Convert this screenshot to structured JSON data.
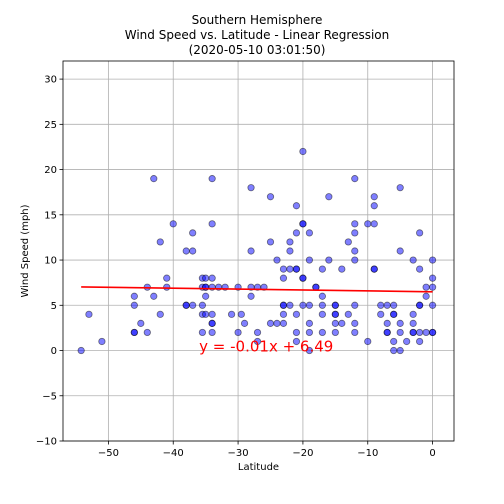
{
  "title_lines": [
    "Southern Hemisphere",
    "Wind Speed vs. Latitude - Linear Regression",
    "(2020-05-10 03:01:50)"
  ],
  "chart_data": {
    "type": "scatter",
    "title": "Southern Hemisphere\nWind Speed vs. Latitude - Linear Regression\n(2020-05-10 03:01:50)",
    "xlabel": "Latitude",
    "ylabel": "Wind Speed (mph)",
    "xlim": [
      -57,
      3.3
    ],
    "ylim": [
      -10,
      32
    ],
    "xticks": [
      -50,
      -40,
      -30,
      -20,
      -10,
      0
    ],
    "yticks": [
      -10,
      -5,
      0,
      5,
      10,
      15,
      20,
      25,
      30
    ],
    "grid": true,
    "marker_color": "#0000ff",
    "regression": {
      "slope": -0.01,
      "intercept": 6.49,
      "x_range": [
        -54.2,
        0
      ],
      "equation": "y = -0.01x + 6.49",
      "equation_color": "#ff0000",
      "line_color": "#ff0000"
    },
    "points": [
      [
        -54.2,
        0
      ],
      [
        -53,
        4
      ],
      [
        -51,
        1
      ],
      [
        -46,
        6
      ],
      [
        -46,
        5
      ],
      [
        -46,
        2
      ],
      [
        -46,
        2
      ],
      [
        -45,
        3
      ],
      [
        -44,
        7
      ],
      [
        -44,
        2
      ],
      [
        -43,
        19
      ],
      [
        -43,
        6
      ],
      [
        -42,
        12
      ],
      [
        -42,
        4
      ],
      [
        -41,
        8
      ],
      [
        -41,
        7
      ],
      [
        -40,
        14
      ],
      [
        -38,
        11
      ],
      [
        -38,
        5
      ],
      [
        -38,
        5
      ],
      [
        -37,
        13
      ],
      [
        -37,
        11
      ],
      [
        -37,
        5
      ],
      [
        -35.5,
        8
      ],
      [
        -35.5,
        7
      ],
      [
        -35.5,
        5
      ],
      [
        -35.5,
        4
      ],
      [
        -35.5,
        2
      ],
      [
        -35,
        8
      ],
      [
        -35,
        6
      ],
      [
        -35,
        7
      ],
      [
        -35,
        7
      ],
      [
        -35,
        4
      ],
      [
        -34,
        8
      ],
      [
        -34,
        7
      ],
      [
        -34,
        14
      ],
      [
        -34,
        19
      ],
      [
        -34,
        4
      ],
      [
        -34,
        3
      ],
      [
        -34,
        3
      ],
      [
        -34,
        2
      ],
      [
        -33,
        7
      ],
      [
        -32,
        7
      ],
      [
        -31,
        4
      ],
      [
        -30,
        2
      ],
      [
        -30,
        7
      ],
      [
        -29.5,
        4
      ],
      [
        -29,
        3
      ],
      [
        -28,
        18
      ],
      [
        -28,
        11
      ],
      [
        -28,
        7
      ],
      [
        -28,
        6
      ],
      [
        -27,
        7
      ],
      [
        -27,
        2
      ],
      [
        -27,
        1
      ],
      [
        -26,
        7
      ],
      [
        -25,
        17
      ],
      [
        -25,
        12
      ],
      [
        -25,
        3
      ],
      [
        -24,
        10
      ],
      [
        -24,
        3
      ],
      [
        -23,
        9
      ],
      [
        -23,
        8
      ],
      [
        -23,
        5
      ],
      [
        -23,
        5
      ],
      [
        -23,
        4
      ],
      [
        -23,
        3
      ],
      [
        -22,
        12
      ],
      [
        -22,
        11
      ],
      [
        -22,
        9
      ],
      [
        -22,
        5
      ],
      [
        -21,
        16
      ],
      [
        -21,
        13
      ],
      [
        -21,
        9
      ],
      [
        -21,
        9
      ],
      [
        -21,
        4
      ],
      [
        -21,
        2
      ],
      [
        -21,
        1
      ],
      [
        -20,
        22
      ],
      [
        -20,
        14
      ],
      [
        -20,
        14
      ],
      [
        -20,
        8
      ],
      [
        -20,
        8
      ],
      [
        -20,
        5
      ],
      [
        -19,
        13
      ],
      [
        -19,
        10
      ],
      [
        -19,
        5
      ],
      [
        -19,
        3
      ],
      [
        -19,
        2
      ],
      [
        -19,
        0
      ],
      [
        -18,
        7
      ],
      [
        -18,
        7
      ],
      [
        -17,
        9
      ],
      [
        -17,
        6
      ],
      [
        -17,
        5
      ],
      [
        -17,
        4
      ],
      [
        -17,
        2
      ],
      [
        -16,
        17
      ],
      [
        -16,
        10
      ],
      [
        -15,
        5
      ],
      [
        -15,
        5
      ],
      [
        -15,
        4
      ],
      [
        -15,
        4
      ],
      [
        -15,
        3
      ],
      [
        -15,
        2
      ],
      [
        -14,
        9
      ],
      [
        -14,
        3
      ],
      [
        -13,
        12
      ],
      [
        -13,
        4
      ],
      [
        -12,
        19
      ],
      [
        -12,
        14
      ],
      [
        -12,
        13
      ],
      [
        -12,
        11
      ],
      [
        -12,
        10
      ],
      [
        -12,
        5
      ],
      [
        -12,
        3
      ],
      [
        -12,
        2
      ],
      [
        -10,
        14
      ],
      [
        -10,
        1
      ],
      [
        -9,
        17
      ],
      [
        -9,
        16
      ],
      [
        -9,
        14
      ],
      [
        -9,
        9
      ],
      [
        -9,
        9
      ],
      [
        -8,
        5
      ],
      [
        -8,
        4
      ],
      [
        -7,
        5
      ],
      [
        -7,
        3
      ],
      [
        -7,
        2
      ],
      [
        -7,
        2
      ],
      [
        -6,
        5
      ],
      [
        -6,
        4
      ],
      [
        -6,
        4
      ],
      [
        -6,
        1
      ],
      [
        -6,
        0
      ],
      [
        -5,
        18
      ],
      [
        -5,
        11
      ],
      [
        -5,
        3
      ],
      [
        -5,
        2
      ],
      [
        -5,
        0
      ],
      [
        -4,
        1
      ],
      [
        -3,
        10
      ],
      [
        -3,
        4
      ],
      [
        -3,
        3
      ],
      [
        -3,
        2
      ],
      [
        -3,
        2
      ],
      [
        -2,
        13
      ],
      [
        -2,
        9
      ],
      [
        -2,
        5
      ],
      [
        -2,
        5
      ],
      [
        -2,
        2
      ],
      [
        -2,
        1
      ],
      [
        -1,
        7
      ],
      [
        -1,
        6
      ],
      [
        -1,
        2
      ],
      [
        0,
        10
      ],
      [
        0,
        8
      ],
      [
        0,
        7
      ],
      [
        0,
        5
      ],
      [
        0,
        2
      ],
      [
        0,
        2
      ]
    ]
  }
}
